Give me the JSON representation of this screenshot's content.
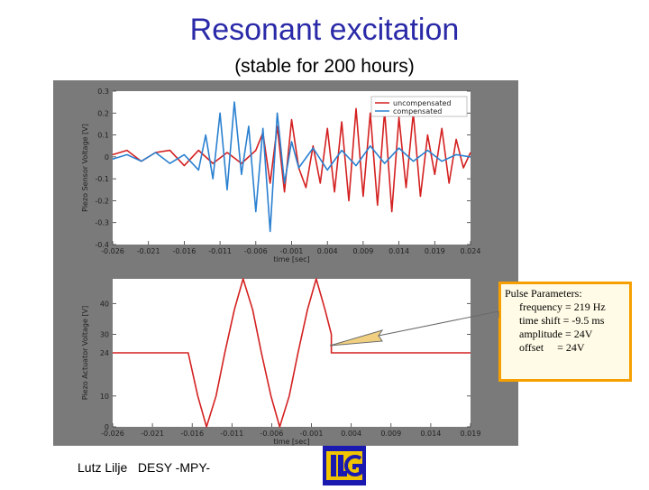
{
  "slide": {
    "title": "Resonant excitation",
    "subtitle": "(stable for 200 hours)",
    "footer": "Lutz Lilje   DESY -MPY-",
    "logo": {
      "icon": "ilc-logo-icon",
      "colors": [
        "#1a1ab0",
        "#f0c400"
      ]
    }
  },
  "callout": {
    "heading": "Pulse Parameters:",
    "lines": [
      "frequency = 219 Hz",
      "time shift = -9.5 ms",
      "amplitude = 24V",
      "offset     = 24V"
    ],
    "border_color": "#f5a000"
  },
  "chart_data": [
    {
      "type": "line",
      "title": "",
      "xlabel": "time [sec]",
      "ylabel": "Piezo Sensor Voltage [V]",
      "xlim": [
        -0.026,
        0.024
      ],
      "ylim": [
        -0.4,
        0.3
      ],
      "xticks": [
        "-0.026",
        "-0.021",
        "-0.016",
        "-0.011",
        "-0.006",
        "-0.001",
        "0.004",
        "0.009",
        "0.014",
        "0.019",
        "0.024"
      ],
      "yticks": [
        "0.3",
        "0.2",
        "0.1",
        "0",
        "-0.1",
        "-0.2",
        "-0.3",
        "-0.4"
      ],
      "legend": {
        "position": "top-right",
        "entries": [
          "uncompensated",
          "compensated"
        ]
      },
      "series": [
        {
          "name": "uncompensated",
          "color": "#d42020",
          "x": [
            -0.026,
            -0.024,
            -0.022,
            -0.02,
            -0.018,
            -0.016,
            -0.014,
            -0.012,
            -0.01,
            -0.008,
            -0.006,
            -0.005,
            -0.004,
            -0.003,
            -0.002,
            -0.001,
            0,
            0.001,
            0.002,
            0.003,
            0.004,
            0.005,
            0.006,
            0.007,
            0.008,
            0.009,
            0.01,
            0.011,
            0.012,
            0.013,
            0.014,
            0.015,
            0.016,
            0.017,
            0.018,
            0.019,
            0.02,
            0.021,
            0.022,
            0.023,
            0.024
          ],
          "y": [
            0.01,
            0.03,
            -0.02,
            0.02,
            0.03,
            -0.04,
            0.03,
            -0.03,
            0.02,
            -0.03,
            0.03,
            0.11,
            -0.12,
            0.14,
            -0.16,
            0.17,
            -0.05,
            -0.14,
            0.05,
            -0.12,
            0.13,
            -0.16,
            0.16,
            -0.2,
            0.22,
            -0.18,
            0.2,
            -0.22,
            0.21,
            -0.25,
            0.18,
            -0.14,
            0.2,
            -0.18,
            0.1,
            -0.08,
            0.13,
            -0.12,
            0.08,
            -0.05,
            0.02
          ]
        },
        {
          "name": "compensated",
          "color": "#2a80d0",
          "x": [
            -0.026,
            -0.024,
            -0.022,
            -0.02,
            -0.018,
            -0.016,
            -0.014,
            -0.013,
            -0.012,
            -0.011,
            -0.01,
            -0.009,
            -0.008,
            -0.007,
            -0.006,
            -0.005,
            -0.004,
            -0.003,
            -0.002,
            -0.001,
            0,
            0.002,
            0.004,
            0.006,
            0.008,
            0.01,
            0.012,
            0.014,
            0.016,
            0.018,
            0.02,
            0.022,
            0.024
          ],
          "y": [
            -0.01,
            0.01,
            -0.02,
            0.02,
            -0.03,
            0.01,
            -0.06,
            0.1,
            -0.1,
            0.2,
            -0.15,
            0.25,
            -0.08,
            0.14,
            -0.25,
            0.13,
            -0.34,
            0.2,
            -0.12,
            0.07,
            -0.05,
            0.04,
            -0.06,
            0.03,
            -0.04,
            0.05,
            -0.03,
            0.04,
            -0.02,
            0.03,
            -0.02,
            0.01,
            0.0
          ]
        }
      ]
    },
    {
      "type": "line",
      "title": "",
      "xlabel": "time [sec]",
      "ylabel": "Piezo Actuator Voltage [V]",
      "xlim": [
        -0.026,
        0.019
      ],
      "ylim": [
        0,
        48
      ],
      "xticks": [
        "-0.026",
        "-0.021",
        "-0.016",
        "-0.011",
        "-0.006",
        "-0.001",
        "0.004",
        "0.009",
        "0.014",
        "0.019"
      ],
      "yticks": [
        "40",
        "30",
        "24",
        "10",
        "0"
      ],
      "series": [
        {
          "name": "",
          "color": "#d42020",
          "x": [
            -0.026,
            -0.0165,
            -0.0165,
            -0.0153,
            -0.0142,
            -0.013,
            -0.0119,
            -0.0107,
            -0.0096,
            -0.0084,
            -0.0073,
            -0.0061,
            -0.005,
            -0.0038,
            -0.0027,
            -0.0015,
            -0.0004,
            0.0007,
            0.0015,
            0.0015,
            0.019
          ],
          "y": [
            24,
            24,
            24,
            10,
            0,
            10,
            24,
            38,
            48,
            38,
            24,
            10,
            0,
            10,
            24,
            38,
            48,
            38,
            30,
            24,
            24
          ]
        }
      ]
    }
  ]
}
